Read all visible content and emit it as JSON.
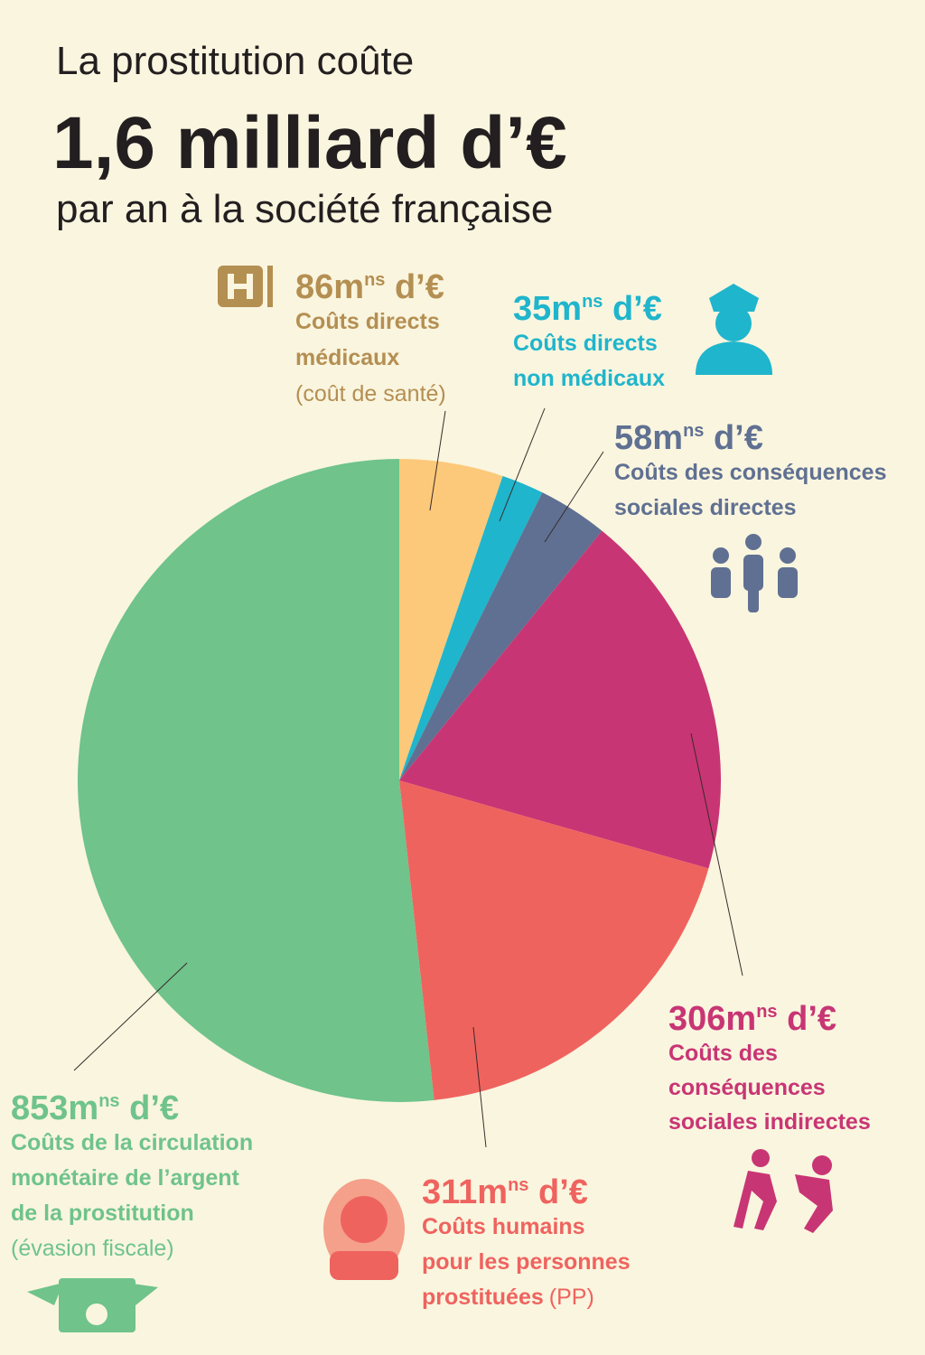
{
  "chart_data": {
    "type": "pie",
    "title": "La prostitution coûte",
    "headline": "1,6 milliard d’€",
    "subtitle": "par an à la société française",
    "values": [
      86,
      35,
      58,
      306,
      311,
      853
    ],
    "value_labels": [
      "86m",
      "35m",
      "58m",
      "306m",
      "311m",
      "853m"
    ],
    "label_sup": "ns",
    "label_suffix": " d’€",
    "colors": [
      "#fcc97a",
      "#1fb5cc",
      "#5f7092",
      "#c83574",
      "#ef635f",
      "#6fc38b"
    ],
    "label_colors": [
      "#b48f52",
      "#1fb5cc",
      "#5f7092",
      "#c83574",
      "#ef635f",
      "#6fc38b"
    ],
    "descriptions": [
      [
        "Coûts directs",
        "médicaux"
      ],
      [
        "Coûts directs",
        "non médicaux"
      ],
      [
        "Coûts des conséquences",
        "sociales directes"
      ],
      [
        "Coûts des",
        "conséquences",
        "sociales indirectes"
      ],
      [
        "Coûts humains",
        "pour les personnes",
        "prostituées"
      ],
      [
        "Coûts de la circulation",
        "monétaire de l’argent",
        "de la prostitution"
      ]
    ],
    "notes": [
      "(coût de santé)",
      null,
      null,
      null,
      "(PP)",
      "(évasion fiscale)"
    ]
  }
}
